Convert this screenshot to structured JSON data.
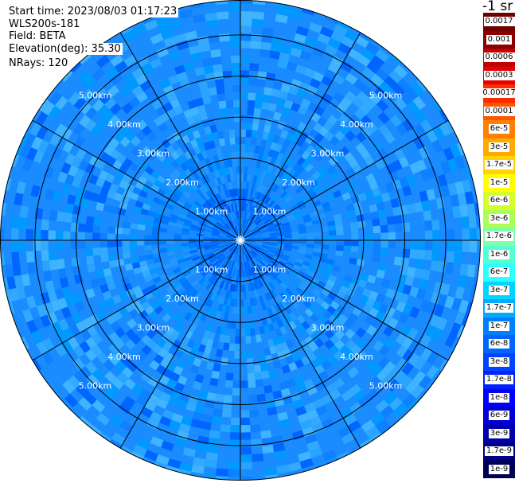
{
  "info": {
    "start_time": "Start time: 2023/08/03 01:17:23",
    "instrument": "WLS200s-181",
    "field": "Field: BETA",
    "elevation": "Elevation(deg): 35.30",
    "nrays": "NRays: 120"
  },
  "colorbar": {
    "unit_title": "-1 sr",
    "labels": [
      "0.0017",
      "0.001",
      "0.0006",
      "0.0003",
      "0.00017",
      "0.0001",
      "6e-5",
      "3e-5",
      "1.7e-5",
      "1e-5",
      "6e-6",
      "3e-6",
      "1.7e-6",
      "1e-6",
      "6e-7",
      "3e-7",
      "1.7e-7",
      "1e-7",
      "6e-8",
      "3e-8",
      "1.7e-8",
      "1e-8",
      "6e-9",
      "3e-9",
      "1.7e-9",
      "1e-9"
    ],
    "colors": [
      "#6e0000",
      "#8b0000",
      "#c00000",
      "#e60000",
      "#ff2a00",
      "#ff5500",
      "#ff8000",
      "#ffaa00",
      "#ffd400",
      "#ffff00",
      "#d4ff2b",
      "#aaff55",
      "#80ffaa",
      "#55ffd4",
      "#2bffff",
      "#00d4ff",
      "#00aaff",
      "#0080ff",
      "#0066ff",
      "#0044ff",
      "#0022ff",
      "#0000ff",
      "#0000d4",
      "#0000aa",
      "#000080",
      "#000055"
    ]
  },
  "chart_data": {
    "type": "heatmap",
    "projection": "polar",
    "field": "BETA",
    "nrays": 120,
    "elevation_deg": 35.3,
    "range_km": [
      0,
      5.85
    ],
    "range_rings_km": [
      1,
      2,
      3,
      4,
      5
    ],
    "ring_labels": [
      "1.00km",
      "2.00km",
      "3.00km",
      "4.00km",
      "5.00km"
    ],
    "azimuth_lines_deg": [
      0,
      30,
      60,
      90,
      120,
      150,
      180,
      210,
      240,
      270,
      300,
      330
    ],
    "value_range": [
      1e-09,
      0.0017
    ],
    "dominant_values": [
      {
        "range_km": [
          0,
          1.2
        ],
        "value": "1e-7"
      },
      {
        "range_km": [
          1.2,
          2.2
        ],
        "value": "6e-8"
      },
      {
        "range_km": [
          2.2,
          5.85
        ],
        "value": "3e-8"
      }
    ]
  }
}
